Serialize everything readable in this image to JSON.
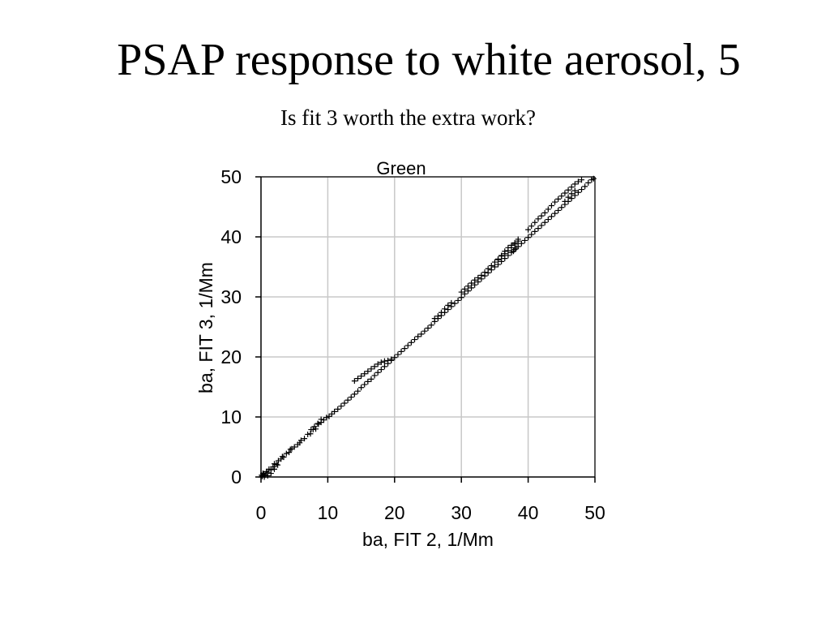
{
  "slide": {
    "title": "PSAP response to white aerosol, 5",
    "subtitle": "Is  fit 3 worth the extra work?"
  },
  "chart_data": {
    "type": "scatter",
    "title": "Green",
    "xlabel": "ba, FIT 2, 1/Mm",
    "ylabel": "ba, FIT 3, 1/Mm",
    "xlim": [
      0,
      50
    ],
    "ylim": [
      0,
      50
    ],
    "xticks": [
      0,
      10,
      20,
      30,
      40,
      50
    ],
    "yticks": [
      0,
      10,
      20,
      30,
      40,
      50
    ],
    "grid": true,
    "marker": "plus",
    "marker_color": "#000000",
    "series": [
      {
        "points": [
          [
            0.0,
            0.0
          ],
          [
            0.2,
            0.1
          ],
          [
            0.4,
            0.5
          ],
          [
            0.6,
            0.3
          ],
          [
            0.8,
            0.9
          ],
          [
            1.0,
            0.7
          ],
          [
            1.2,
            1.3
          ],
          [
            1.5,
            1.2
          ],
          [
            1.8,
            1.7
          ],
          [
            2.0,
            2.2
          ],
          [
            2.3,
            2.1
          ],
          [
            2.6,
            2.7
          ],
          [
            3.0,
            3.0
          ],
          [
            3.4,
            3.3
          ],
          [
            3.8,
            3.9
          ],
          [
            4.2,
            4.1
          ],
          [
            4.6,
            4.7
          ],
          [
            5.0,
            5.0
          ],
          [
            5.5,
            5.4
          ],
          [
            6.0,
            6.1
          ],
          [
            6.5,
            6.4
          ],
          [
            7.0,
            7.1
          ],
          [
            7.4,
            7.2
          ],
          [
            7.8,
            7.9
          ],
          [
            8.2,
            8.0
          ],
          [
            8.6,
            8.8
          ],
          [
            9.0,
            9.1
          ],
          [
            9.4,
            9.5
          ],
          [
            9.8,
            9.9
          ],
          [
            10.2,
            10.1
          ],
          [
            10.6,
            10.5
          ],
          [
            11.0,
            10.9
          ],
          [
            11.5,
            11.3
          ],
          [
            12.0,
            11.8
          ],
          [
            12.5,
            12.3
          ],
          [
            13.0,
            12.8
          ],
          [
            13.5,
            13.3
          ],
          [
            14.0,
            13.8
          ],
          [
            14.5,
            14.3
          ],
          [
            15.0,
            14.9
          ],
          [
            15.5,
            15.4
          ],
          [
            16.0,
            15.9
          ],
          [
            16.5,
            16.3
          ],
          [
            17.0,
            16.9
          ],
          [
            17.5,
            17.4
          ],
          [
            18.0,
            17.9
          ],
          [
            18.5,
            18.4
          ],
          [
            19.0,
            18.9
          ],
          [
            19.5,
            19.4
          ],
          [
            20.0,
            19.9
          ],
          [
            20.5,
            20.4
          ],
          [
            21.0,
            20.9
          ],
          [
            21.5,
            21.4
          ],
          [
            22.0,
            21.9
          ],
          [
            22.5,
            22.4
          ],
          [
            23.0,
            22.9
          ],
          [
            23.5,
            23.4
          ],
          [
            24.0,
            23.8
          ],
          [
            24.5,
            24.3
          ],
          [
            25.0,
            24.8
          ],
          [
            25.5,
            25.3
          ],
          [
            26.0,
            25.9
          ],
          [
            26.5,
            26.4
          ],
          [
            27.0,
            26.9
          ],
          [
            27.5,
            27.4
          ],
          [
            28.0,
            27.9
          ],
          [
            28.5,
            28.4
          ],
          [
            29.0,
            28.9
          ],
          [
            29.5,
            29.4
          ],
          [
            30.0,
            29.9
          ],
          [
            30.5,
            30.5
          ],
          [
            31.0,
            31.0
          ],
          [
            31.5,
            31.5
          ],
          [
            32.0,
            32.0
          ],
          [
            32.5,
            32.5
          ],
          [
            33.0,
            33.0
          ],
          [
            33.5,
            33.5
          ],
          [
            34.0,
            34.0
          ],
          [
            34.5,
            34.5
          ],
          [
            35.0,
            35.0
          ],
          [
            35.5,
            35.4
          ],
          [
            36.0,
            35.9
          ],
          [
            36.5,
            36.4
          ],
          [
            37.0,
            36.9
          ],
          [
            37.5,
            37.4
          ],
          [
            38.0,
            37.9
          ],
          [
            38.5,
            38.4
          ],
          [
            39.0,
            38.9
          ],
          [
            39.5,
            39.4
          ],
          [
            40.0,
            39.9
          ],
          [
            40.5,
            40.4
          ],
          [
            41.0,
            40.9
          ],
          [
            41.5,
            41.4
          ],
          [
            42.0,
            41.9
          ],
          [
            42.5,
            42.4
          ],
          [
            43.0,
            42.9
          ],
          [
            43.5,
            43.4
          ],
          [
            44.0,
            43.9
          ],
          [
            44.5,
            44.4
          ],
          [
            45.0,
            44.9
          ],
          [
            45.5,
            45.4
          ],
          [
            46.0,
            45.9
          ],
          [
            46.5,
            46.4
          ],
          [
            47.0,
            46.9
          ],
          [
            47.5,
            47.4
          ],
          [
            48.0,
            47.9
          ],
          [
            48.5,
            48.4
          ],
          [
            49.0,
            49.0
          ],
          [
            49.5,
            49.5
          ],
          [
            49.8,
            49.7
          ],
          [
            14.0,
            16.0
          ],
          [
            14.5,
            16.4
          ],
          [
            15.0,
            16.8
          ],
          [
            15.5,
            17.2
          ],
          [
            16.0,
            17.6
          ],
          [
            16.5,
            18.0
          ],
          [
            17.0,
            18.4
          ],
          [
            17.5,
            18.8
          ],
          [
            18.0,
            19.1
          ],
          [
            18.5,
            19.3
          ],
          [
            19.0,
            19.4
          ],
          [
            19.5,
            19.6
          ],
          [
            30.0,
            30.8
          ],
          [
            30.5,
            31.3
          ],
          [
            31.0,
            31.8
          ],
          [
            31.5,
            32.3
          ],
          [
            32.0,
            32.8
          ],
          [
            32.5,
            33.2
          ],
          [
            33.0,
            33.6
          ],
          [
            33.5,
            34.1
          ],
          [
            34.0,
            34.7
          ],
          [
            34.5,
            35.2
          ],
          [
            35.0,
            35.8
          ],
          [
            35.5,
            36.3
          ],
          [
            36.0,
            36.8
          ],
          [
            36.5,
            37.2
          ],
          [
            37.0,
            37.7
          ],
          [
            37.5,
            38.2
          ],
          [
            38.0,
            38.8
          ],
          [
            38.5,
            39.3
          ],
          [
            40.0,
            41.2
          ],
          [
            40.5,
            41.8
          ],
          [
            41.0,
            42.4
          ],
          [
            41.5,
            43.0
          ],
          [
            42.0,
            43.5
          ],
          [
            42.5,
            44.0
          ],
          [
            43.0,
            44.6
          ],
          [
            43.5,
            45.2
          ],
          [
            44.0,
            45.8
          ],
          [
            44.5,
            46.3
          ],
          [
            45.0,
            46.8
          ],
          [
            45.5,
            47.3
          ],
          [
            46.0,
            47.8
          ],
          [
            46.5,
            48.3
          ],
          [
            47.0,
            48.8
          ],
          [
            47.5,
            49.2
          ],
          [
            48.0,
            49.5
          ],
          [
            45.5,
            45.9
          ],
          [
            46.0,
            46.6
          ],
          [
            46.5,
            47.2
          ],
          [
            47.0,
            47.7
          ],
          [
            36.5,
            37.6
          ],
          [
            37.0,
            38.2
          ],
          [
            37.5,
            38.6
          ],
          [
            38.0,
            39.0
          ],
          [
            38.5,
            39.6
          ],
          [
            36.0,
            36.9
          ],
          [
            35.5,
            36.2
          ],
          [
            37.8,
            37.6
          ],
          [
            38.2,
            38.1
          ],
          [
            27.0,
            27.4
          ],
          [
            27.5,
            28.0
          ],
          [
            28.0,
            28.6
          ],
          [
            28.5,
            29.0
          ],
          [
            26.5,
            26.8
          ],
          [
            26.0,
            26.4
          ],
          [
            8.0,
            8.4
          ],
          [
            8.5,
            8.9
          ],
          [
            9.0,
            9.6
          ],
          [
            7.5,
            7.9
          ],
          [
            1.0,
            0.2
          ],
          [
            1.5,
            0.6
          ],
          [
            2.0,
            1.3
          ],
          [
            0.5,
            0.0
          ],
          [
            0.3,
            0.6
          ],
          [
            0.1,
            0.3
          ],
          [
            2.5,
            2.0
          ],
          [
            3.2,
            3.4
          ],
          [
            4.4,
            4.6
          ],
          [
            5.8,
            5.7
          ]
        ]
      }
    ]
  }
}
